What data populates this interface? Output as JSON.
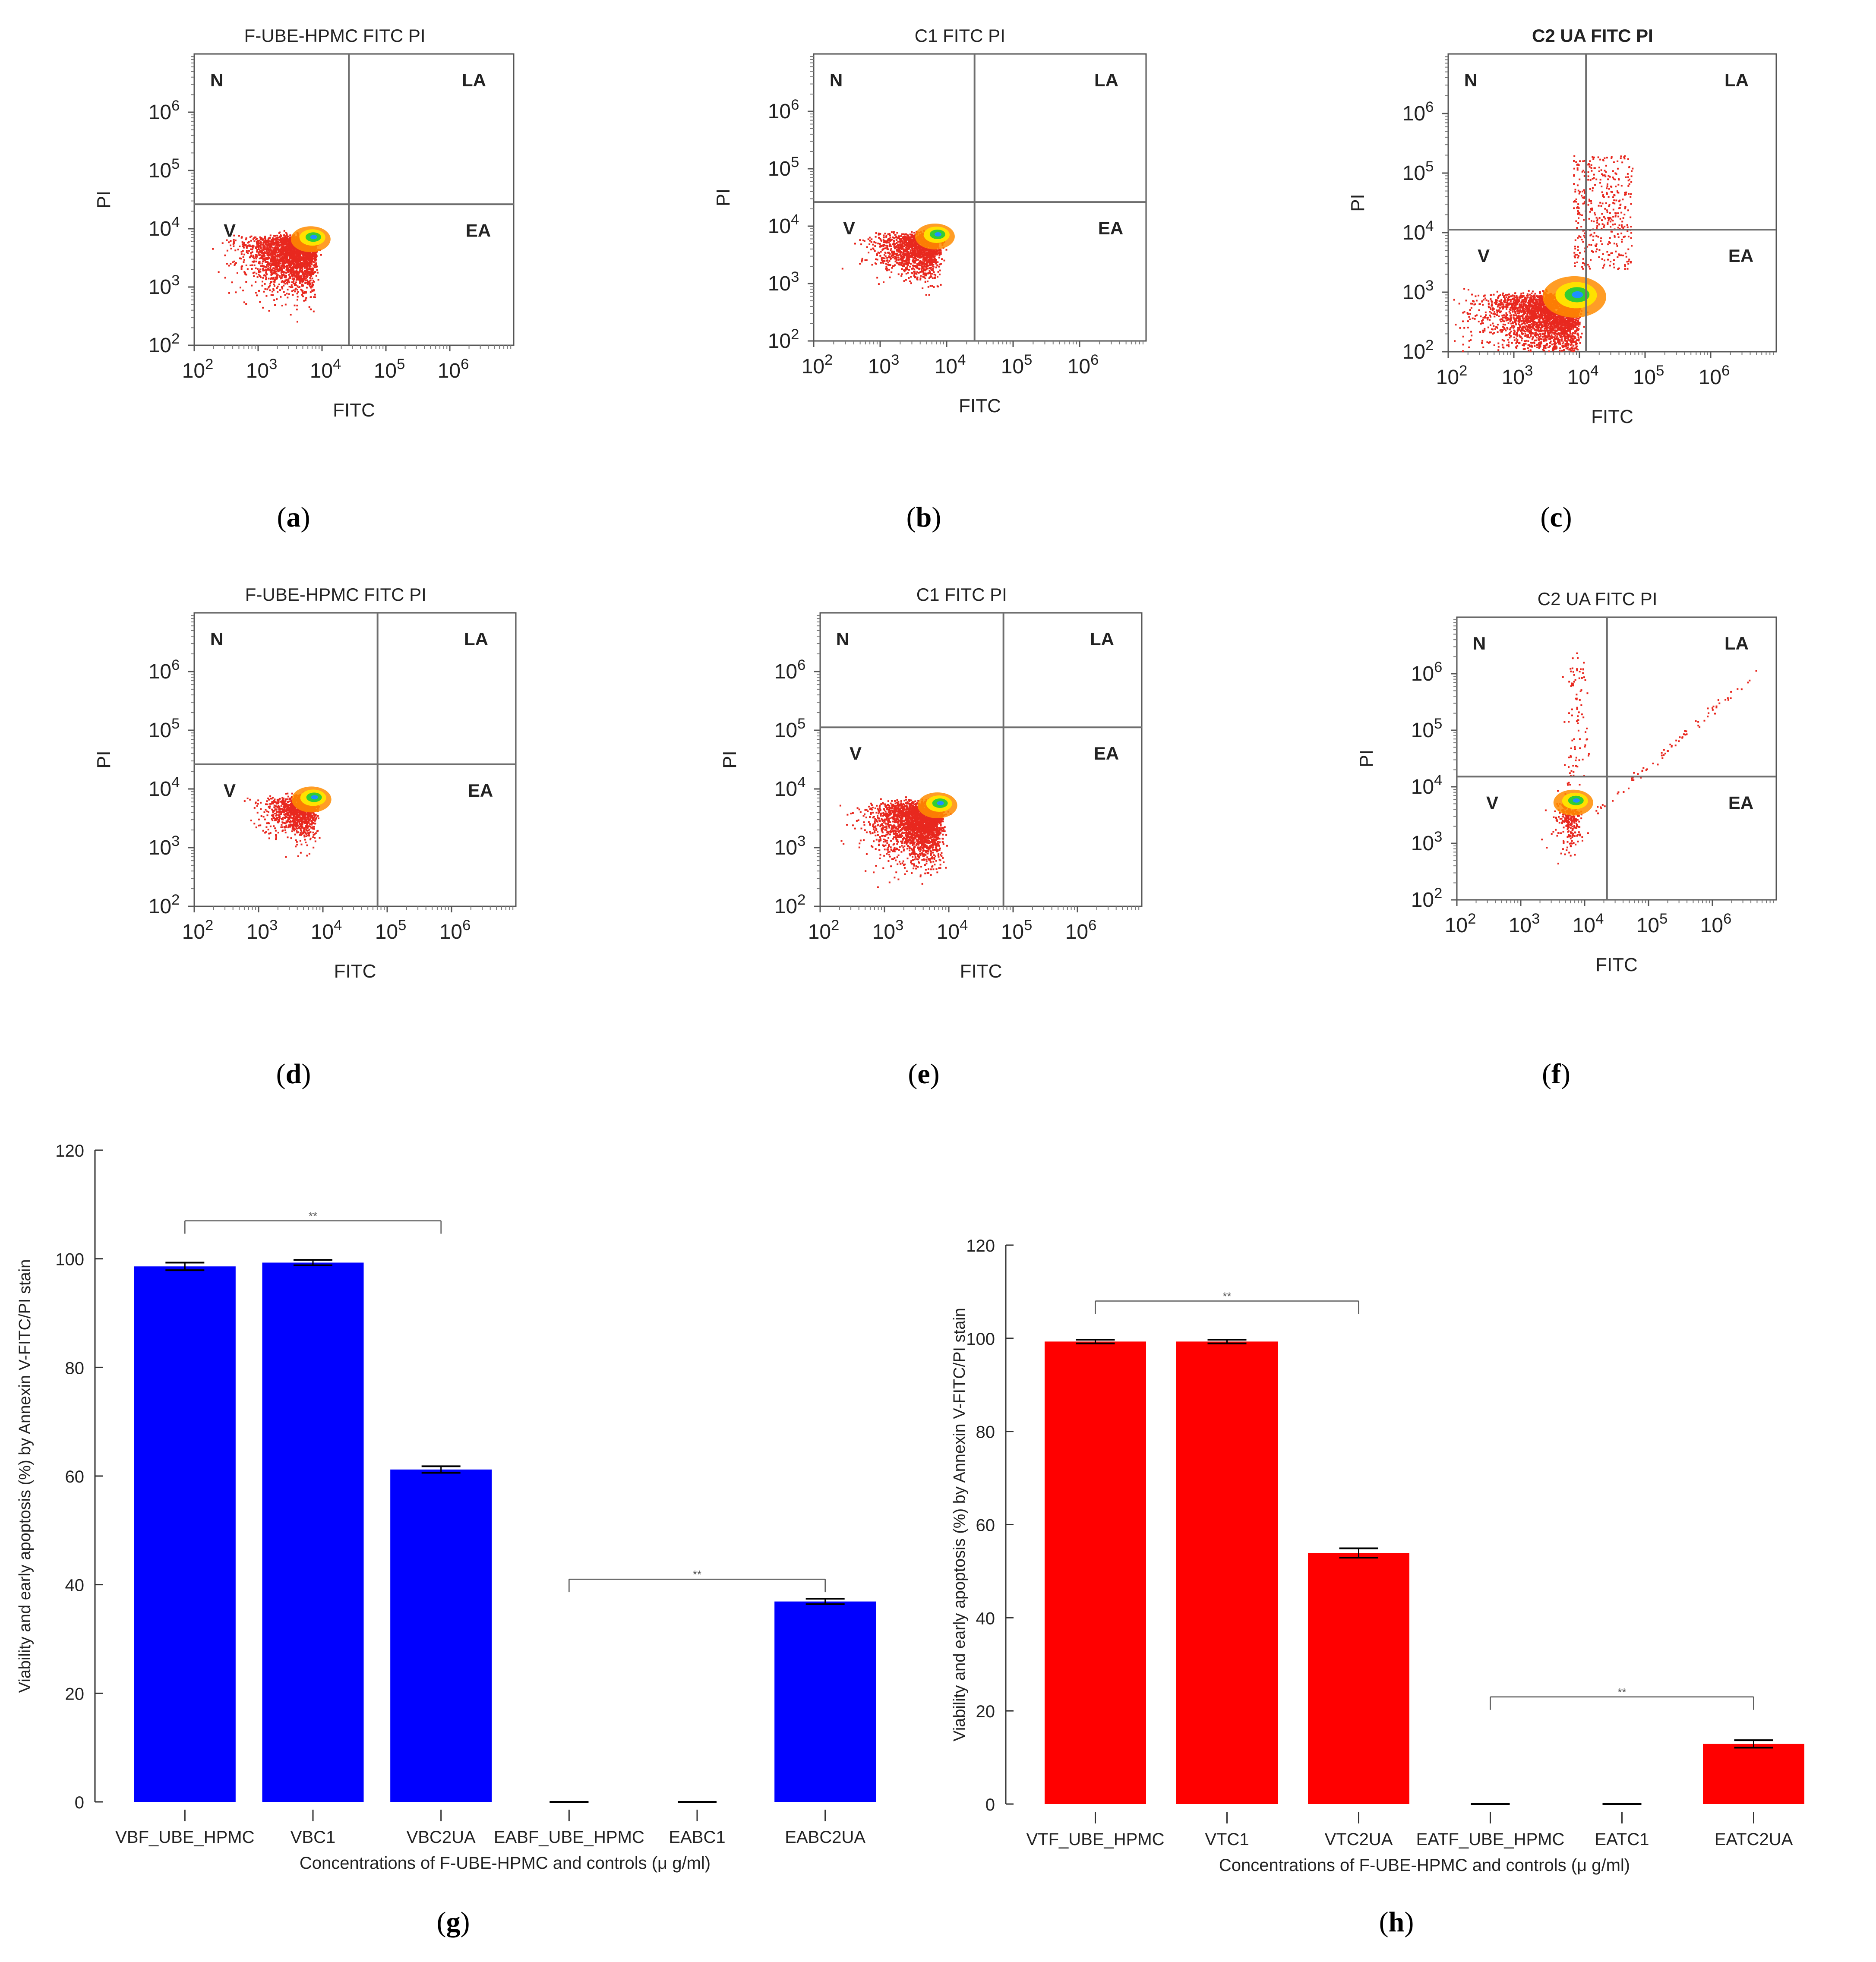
{
  "figure": {
    "panel_labels": [
      "(a)",
      "(b)",
      "(c)",
      "(d)",
      "(e)",
      "(f)",
      "(g)",
      "(h)"
    ]
  },
  "colors": {
    "quadrant_line": "#6e6e6e",
    "dot": "#e8281f",
    "hot_1": "#ff8c00",
    "hot_2": "#ffe100",
    "hot_3": "#32cd32",
    "hot_4": "#1e90ff",
    "bar_g": "#0000ff",
    "bar_h": "#ff0000"
  },
  "chart_data": [
    {
      "type": "scatter",
      "panel": "(a)",
      "title": "F-UBE-HPMC FITC PI",
      "xlabel": "FITC",
      "ylabel": "PI",
      "xlim_log10": [
        2,
        7
      ],
      "ylim_log10": [
        2,
        7
      ],
      "x_ticks": [
        "10^2",
        "10^3",
        "10^4",
        "10^5",
        "10^6"
      ],
      "y_ticks": [
        "10^2",
        "10^3",
        "10^4",
        "10^5",
        "10^6"
      ],
      "quadrant_labels": {
        "N": "N",
        "LA": "LA",
        "V": "V",
        "EA": "EA"
      },
      "gate_log10": {
        "x": 4.42,
        "y": 4.42
      },
      "population": {
        "center_log10": [
          3.85,
          3.85
        ],
        "spread_log10": [
          0.42,
          0.36
        ],
        "count": 2600,
        "density_peak": true
      }
    },
    {
      "type": "scatter",
      "panel": "(b)",
      "title": "C1 FITC PI",
      "xlabel": "FITC",
      "ylabel": "PI",
      "xlim_log10": [
        2,
        7
      ],
      "ylim_log10": [
        2,
        7
      ],
      "x_ticks": [
        "10^2",
        "10^3",
        "10^4",
        "10^5",
        "10^6"
      ],
      "y_ticks": [
        "10^2",
        "10^3",
        "10^4",
        "10^5",
        "10^6"
      ],
      "quadrant_labels": {
        "N": "N",
        "LA": "LA",
        "V": "V",
        "EA": "EA"
      },
      "gate_log10": {
        "x": 4.42,
        "y": 4.42
      },
      "population": {
        "center_log10": [
          3.85,
          3.85
        ],
        "spread_log10": [
          0.36,
          0.28
        ],
        "count": 1600,
        "density_peak": true
      }
    },
    {
      "type": "scatter",
      "panel": "(c)",
      "title": "C2 UA FITC PI",
      "xlabel": "FITC",
      "ylabel": "PI",
      "xlim_log10": [
        2,
        7
      ],
      "ylim_log10": [
        2,
        7
      ],
      "x_ticks": [
        "10^2",
        "10^3",
        "10^4",
        "10^5",
        "10^6"
      ],
      "y_ticks": [
        "10^2",
        "10^3",
        "10^4",
        "10^5",
        "10^6"
      ],
      "quadrant_labels": {
        "N": "N",
        "LA": "LA",
        "V": "V",
        "EA": "EA"
      },
      "gate_log10": {
        "x": 4.1,
        "y": 4.05
      },
      "population": {
        "center_log10": [
          3.95,
          2.95
        ],
        "spread_log10": [
          0.55,
          0.4
        ],
        "count": 3600,
        "density_peak": true
      }
    },
    {
      "type": "scatter",
      "panel": "(d)",
      "title": "F-UBE-HPMC FITC PI",
      "xlabel": "FITC",
      "ylabel": "PI",
      "xlim_log10": [
        2,
        7
      ],
      "ylim_log10": [
        2,
        7
      ],
      "x_ticks": [
        "10^2",
        "10^3",
        "10^4",
        "10^5",
        "10^6"
      ],
      "y_ticks": [
        "10^2",
        "10^3",
        "10^4",
        "10^5",
        "10^6"
      ],
      "quadrant_labels": {
        "N": "N",
        "LA": "LA",
        "V": "V",
        "EA": "EA"
      },
      "gate_log10": {
        "x": 4.85,
        "y": 4.42
      },
      "population": {
        "center_log10": [
          3.85,
          3.85
        ],
        "spread_log10": [
          0.3,
          0.25
        ],
        "count": 1300,
        "density_peak": true
      }
    },
    {
      "type": "scatter",
      "panel": "(e)",
      "title": "C1 FITC PI",
      "xlabel": "FITC",
      "ylabel": "PI",
      "xlim_log10": [
        2,
        7
      ],
      "ylim_log10": [
        2,
        7
      ],
      "x_ticks": [
        "10^2",
        "10^3",
        "10^4",
        "10^5",
        "10^6"
      ],
      "y_ticks": [
        "10^2",
        "10^3",
        "10^4",
        "10^5",
        "10^6"
      ],
      "quadrant_labels": {
        "N": "N",
        "LA": "LA",
        "V": "V",
        "EA": "EA"
      },
      "gate_log10": {
        "x": 4.85,
        "y": 5.05
      },
      "population": {
        "center_log10": [
          3.85,
          3.75
        ],
        "spread_log10": [
          0.42,
          0.38
        ],
        "count": 2800,
        "density_peak": true
      }
    },
    {
      "type": "scatter",
      "panel": "(f)",
      "title": "C2 UA FITC PI",
      "xlabel": "FITC",
      "ylabel": "PI",
      "xlim_log10": [
        2,
        7
      ],
      "ylim_log10": [
        2,
        7
      ],
      "x_ticks": [
        "10^2",
        "10^3",
        "10^4",
        "10^5",
        "10^6"
      ],
      "y_ticks": [
        "10^2",
        "10^3",
        "10^4",
        "10^5",
        "10^6"
      ],
      "quadrant_labels": {
        "N": "N",
        "LA": "LA",
        "V": "V",
        "EA": "EA"
      },
      "gate_log10": {
        "x": 4.35,
        "y": 4.18
      },
      "population": {
        "center_log10": [
          3.85,
          3.75
        ],
        "spread_log10": [
          0.12,
          0.35
        ],
        "count": 500,
        "density_peak": true,
        "diagonal_tail": true
      }
    },
    {
      "type": "bar",
      "panel": "(g)",
      "categories": [
        "VBF_UBE_HPMC",
        "VBC1",
        "VBC2UA",
        "EABF_UBE_HPMC",
        "EABC1",
        "EABC2UA"
      ],
      "values": [
        98.6,
        99.3,
        61.2,
        0,
        0,
        36.9
      ],
      "errors": [
        0.7,
        0.5,
        0.6,
        0,
        0,
        0.5
      ],
      "xlabel": "Concentrations of F-UBE-HPMC and controls (μ g/ml)",
      "ylabel": "Viability and early apoptosis (%) by Annexin V-FITC/PI stain",
      "ylim": [
        0,
        120
      ],
      "y_ticks": [
        0,
        20,
        40,
        60,
        80,
        100,
        120
      ],
      "significance": [
        {
          "from": 0,
          "to": 2,
          "label": "**",
          "level": 107
        },
        {
          "from": 3,
          "to": 5,
          "label": "**",
          "level": 41
        }
      ]
    },
    {
      "type": "bar",
      "panel": "(h)",
      "categories": [
        "VTF_UBE_HPMC",
        "VTC1",
        "VTC2UA",
        "EATF_UBE_HPMC",
        "EATC1",
        "EATC2UA"
      ],
      "values": [
        99.3,
        99.3,
        53.9,
        0,
        0,
        12.9
      ],
      "errors": [
        0.4,
        0.4,
        1.0,
        0,
        0,
        0.8
      ],
      "xlabel": "Concentrations of F-UBE-HPMC and controls (μ g/ml)",
      "ylabel": "Viability and early apoptosis (%) by Annexin V-FITC/PI stain",
      "ylim": [
        0,
        120
      ],
      "y_ticks": [
        0,
        20,
        40,
        60,
        80,
        100,
        120
      ],
      "significance": [
        {
          "from": 0,
          "to": 2,
          "label": "**",
          "level": 108
        },
        {
          "from": 3,
          "to": 5,
          "label": "**",
          "level": 23
        }
      ]
    }
  ]
}
